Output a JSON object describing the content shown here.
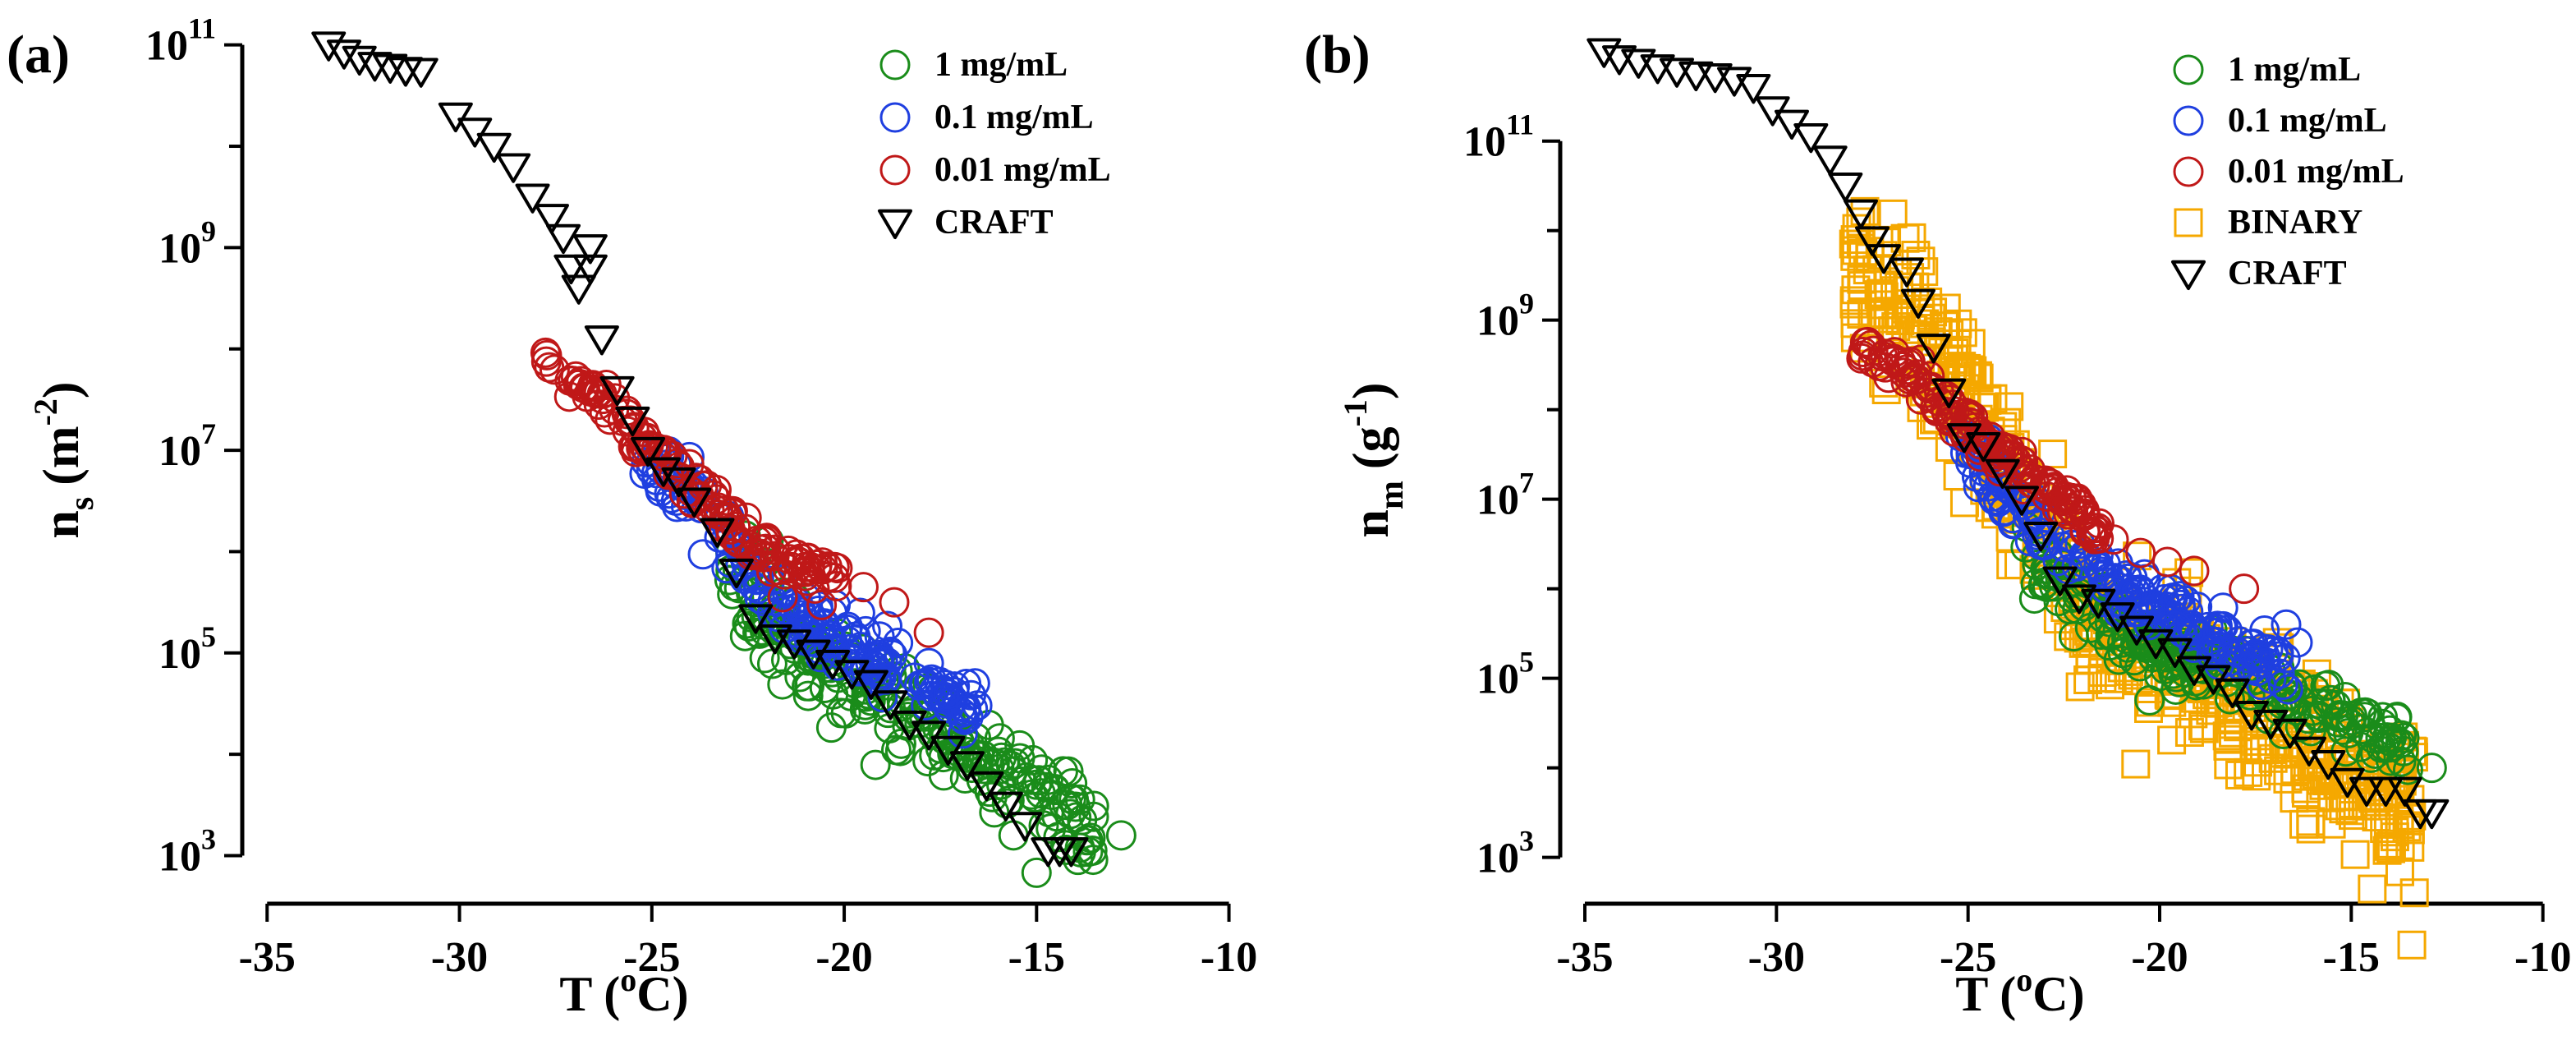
{
  "chart_data": [
    {
      "panel_label": "(a)",
      "type": "scatter",
      "xlabel_main": "T (",
      "xlabel_sup": "o",
      "xlabel_end": "C)",
      "ylabel_base": "n",
      "ylabel_sub": "s",
      "ylabel_units_open": "(m",
      "ylabel_units_sup": "-2",
      "ylabel_units_close": ")",
      "xlim": [
        -36.5,
        -9.5
      ],
      "ylim_log10": [
        2.85,
        11.2
      ],
      "x_ticks": [
        -35,
        -30,
        -25,
        -20,
        -15,
        -10
      ],
      "x_tick_labels": [
        "-35",
        "-30",
        "-25",
        "-20",
        "-15",
        "-10"
      ],
      "y_major_ticks_log10": [
        3,
        5,
        7,
        9,
        11
      ],
      "y_minor_ticks_log10": [
        4,
        6,
        8,
        10
      ],
      "y_tick_base": "10",
      "y_tick_exponents": [
        "3",
        "5",
        "7",
        "9",
        "11"
      ],
      "legend": [
        {
          "label": "1     mg/mL",
          "series": "1 mg/mL"
        },
        {
          "label": "0.1  mg/mL",
          "series": "0.1 mg/mL"
        },
        {
          "label": "0.01 mg/mL",
          "series": "0.01 mg/mL"
        },
        {
          "label": "CRAFT",
          "series": "CRAFT"
        }
      ],
      "series": [
        {
          "name": "1 mg/mL",
          "marker": "circle",
          "color": "#1a8c1a",
          "trend": [
            [
              -23,
              5.8
            ],
            [
              -21,
              5.0
            ],
            [
              -19,
              4.6
            ],
            [
              -17,
              4.1
            ],
            [
              -15,
              3.6
            ],
            [
              -13.5,
              3.3
            ]
          ],
          "count": 220,
          "spread": 0.22,
          "extra": [
            [
              -12.8,
              3.2
            ],
            [
              -15.6,
              3.2
            ],
            [
              -14.2,
              3.5
            ],
            [
              -14.6,
              3.6
            ],
            [
              -15.0,
              3.7
            ]
          ]
        },
        {
          "name": "0.1 mg/mL",
          "marker": "circle",
          "color": "#1f3fe0",
          "trend": [
            [
              -25.2,
              6.8
            ],
            [
              -24,
              6.6
            ],
            [
              -23,
              6.1
            ],
            [
              -22,
              5.6
            ],
            [
              -21,
              5.3
            ],
            [
              -19.5,
              5.0
            ],
            [
              -17.5,
              4.6
            ],
            [
              -16.5,
              4.3
            ]
          ],
          "count": 180,
          "spread": 0.14,
          "extra": [
            [
              -16.6,
              4.7
            ],
            [
              -17.8,
              4.9
            ],
            [
              -18.6,
              5.1
            ]
          ]
        },
        {
          "name": "0.01 mg/mL",
          "marker": "circle",
          "color": "#c01818",
          "trend": [
            [
              -27.8,
              7.85
            ],
            [
              -26.5,
              7.6
            ],
            [
              -25.5,
              7.2
            ],
            [
              -24.5,
              6.8
            ],
            [
              -23.5,
              6.5
            ],
            [
              -22.5,
              6.1
            ],
            [
              -21.5,
              5.9
            ],
            [
              -20,
              5.7
            ]
          ],
          "count": 140,
          "spread": 0.1,
          "extra": [
            [
              -17.8,
              5.2
            ],
            [
              -18.7,
              5.5
            ],
            [
              -19.5,
              5.65
            ],
            [
              -20.4,
              5.75
            ],
            [
              -21.0,
              5.8
            ],
            [
              -22.0,
              5.95
            ],
            [
              -21.6,
              5.55
            ]
          ]
        },
        {
          "name": "CRAFT",
          "marker": "triangle-down",
          "color": "#000000",
          "points": [
            [
              -33.4,
              11.0
            ],
            [
              -33.0,
              10.92
            ],
            [
              -32.6,
              10.86
            ],
            [
              -32.2,
              10.8
            ],
            [
              -31.8,
              10.78
            ],
            [
              -31.4,
              10.75
            ],
            [
              -31.0,
              10.74
            ],
            [
              -30.1,
              10.3
            ],
            [
              -29.6,
              10.15
            ],
            [
              -29.1,
              10.0
            ],
            [
              -28.6,
              9.8
            ],
            [
              -28.1,
              9.5
            ],
            [
              -27.6,
              9.3
            ],
            [
              -27.3,
              9.1
            ],
            [
              -27.1,
              8.8
            ],
            [
              -26.6,
              9.0
            ],
            [
              -26.9,
              8.6
            ],
            [
              -26.6,
              8.8
            ],
            [
              -26.3,
              8.1
            ],
            [
              -25.9,
              7.6
            ],
            [
              -25.5,
              7.3
            ],
            [
              -25.1,
              7.0
            ],
            [
              -24.7,
              6.8
            ],
            [
              -24.3,
              6.7
            ],
            [
              -23.9,
              6.5
            ],
            [
              -23.3,
              6.2
            ],
            [
              -22.8,
              5.8
            ],
            [
              -22.3,
              5.35
            ],
            [
              -21.8,
              5.15
            ],
            [
              -21.3,
              5.1
            ],
            [
              -20.8,
              5.0
            ],
            [
              -20.3,
              4.9
            ],
            [
              -19.8,
              4.8
            ],
            [
              -19.3,
              4.7
            ],
            [
              -18.8,
              4.5
            ],
            [
              -18.3,
              4.3
            ],
            [
              -17.8,
              4.2
            ],
            [
              -17.3,
              4.05
            ],
            [
              -16.8,
              3.9
            ],
            [
              -16.3,
              3.7
            ],
            [
              -15.8,
              3.5
            ],
            [
              -15.3,
              3.3
            ],
            [
              -14.7,
              3.05
            ],
            [
              -14.4,
              3.05
            ],
            [
              -14.1,
              3.05
            ]
          ]
        }
      ]
    },
    {
      "panel_label": "(b)",
      "type": "scatter",
      "xlabel_main": "T (",
      "xlabel_sup": "o",
      "xlabel_end": "C)",
      "ylabel_base": "n",
      "ylabel_sub": "m",
      "ylabel_units_open": "(g",
      "ylabel_units_sup": "-1",
      "ylabel_units_close": ")",
      "xlim": [
        -36.5,
        -9.5
      ],
      "ylim_log10": [
        2.85,
        12.3
      ],
      "x_ticks": [
        -35,
        -30,
        -25,
        -20,
        -15,
        -10
      ],
      "x_tick_labels": [
        "-35",
        "-30",
        "-25",
        "-20",
        "-15",
        "-10"
      ],
      "y_major_ticks_log10": [
        3,
        5,
        7,
        9,
        11
      ],
      "y_minor_ticks_log10": [
        4,
        6,
        8,
        10
      ],
      "y_tick_base": "10",
      "y_tick_exponents": [
        "3",
        "5",
        "7",
        "9",
        "11"
      ],
      "legend": [
        {
          "label": "1     mg/mL",
          "series": "1 mg/mL"
        },
        {
          "label": "0.1  mg/mL",
          "series": "0.1 mg/mL"
        },
        {
          "label": "0.01 mg/mL",
          "series": "0.01 mg/mL"
        },
        {
          "label": "BINARY",
          "series": "BINARY"
        },
        {
          "label": "CRAFT",
          "series": "CRAFT"
        }
      ],
      "series": [
        {
          "name": "BINARY",
          "marker": "square",
          "color": "#f5a800",
          "trend": [
            [
              -28,
              9.4
            ],
            [
              -26.5,
              9.0
            ],
            [
              -25,
              8.1
            ],
            [
              -24,
              7.3
            ],
            [
              -23,
              6.5
            ],
            [
              -22,
              6.0
            ],
            [
              -20,
              5.3
            ],
            [
              -18,
              4.8
            ],
            [
              -16,
              4.2
            ],
            [
              -14,
              3.7
            ],
            [
              -13.3,
              3.6
            ]
          ],
          "count": 520,
          "spread": 0.45,
          "extra": []
        },
        {
          "name": "1 mg/mL",
          "marker": "circle",
          "color": "#1a8c1a",
          "trend": [
            [
              -23.5,
              6.3
            ],
            [
              -22,
              5.8
            ],
            [
              -20,
              5.3
            ],
            [
              -18,
              5.1
            ],
            [
              -16,
              4.7
            ],
            [
              -14.5,
              4.4
            ],
            [
              -13.5,
              4.2
            ]
          ],
          "count": 200,
          "spread": 0.18,
          "extra": [
            [
              -12.9,
              4.0
            ],
            [
              -14.0,
              4.3
            ],
            [
              -15.4,
              4.7
            ]
          ]
        },
        {
          "name": "0.1 mg/mL",
          "marker": "circle",
          "color": "#1f3fe0",
          "trend": [
            [
              -25.2,
              7.7
            ],
            [
              -24,
              7.0
            ],
            [
              -23,
              6.6
            ],
            [
              -22,
              6.3
            ],
            [
              -21,
              6.0
            ],
            [
              -19.5,
              5.7
            ],
            [
              -18,
              5.4
            ],
            [
              -16.6,
              5.1
            ]
          ],
          "count": 190,
          "spread": 0.14,
          "extra": [
            [
              -16.7,
              5.6
            ],
            [
              -16.4,
              5.4
            ]
          ]
        },
        {
          "name": "0.01 mg/mL",
          "marker": "circle",
          "color": "#c01818",
          "trend": [
            [
              -27.8,
              8.7
            ],
            [
              -26.5,
              8.4
            ],
            [
              -25.5,
              8.0
            ],
            [
              -24.5,
              7.6
            ],
            [
              -23.5,
              7.3
            ],
            [
              -22.5,
              7.0
            ],
            [
              -21.5,
              6.6
            ]
          ],
          "count": 140,
          "spread": 0.1,
          "extra": [
            [
              -17.8,
              6.0
            ],
            [
              -19.1,
              6.2
            ],
            [
              -19.8,
              6.3
            ],
            [
              -20.5,
              6.4
            ],
            [
              -21.2,
              6.55
            ]
          ]
        },
        {
          "name": "CRAFT",
          "marker": "triangle-down",
          "color": "#000000",
          "points": [
            [
              -34.5,
              12.0
            ],
            [
              -34.1,
              11.92
            ],
            [
              -33.6,
              11.88
            ],
            [
              -33.1,
              11.82
            ],
            [
              -32.6,
              11.78
            ],
            [
              -32.1,
              11.74
            ],
            [
              -31.6,
              11.72
            ],
            [
              -31.1,
              11.68
            ],
            [
              -30.6,
              11.6
            ],
            [
              -30.1,
              11.35
            ],
            [
              -29.6,
              11.2
            ],
            [
              -29.1,
              11.05
            ],
            [
              -28.6,
              10.8
            ],
            [
              -28.2,
              10.5
            ],
            [
              -27.8,
              10.2
            ],
            [
              -27.5,
              9.9
            ],
            [
              -27.2,
              9.7
            ],
            [
              -26.6,
              9.55
            ],
            [
              -26.3,
              9.2
            ],
            [
              -25.9,
              8.7
            ],
            [
              -25.5,
              8.2
            ],
            [
              -25.1,
              7.7
            ],
            [
              -24.6,
              7.6
            ],
            [
              -24.1,
              7.3
            ],
            [
              -23.6,
              7.0
            ],
            [
              -23.1,
              6.6
            ],
            [
              -22.6,
              6.1
            ],
            [
              -22.1,
              5.9
            ],
            [
              -21.6,
              5.85
            ],
            [
              -21.1,
              5.7
            ],
            [
              -20.6,
              5.55
            ],
            [
              -20.1,
              5.4
            ],
            [
              -19.6,
              5.3
            ],
            [
              -19.1,
              5.1
            ],
            [
              -18.6,
              5.0
            ],
            [
              -18.1,
              4.85
            ],
            [
              -17.6,
              4.6
            ],
            [
              -17.1,
              4.5
            ],
            [
              -16.6,
              4.4
            ],
            [
              -16.1,
              4.2
            ],
            [
              -15.6,
              4.05
            ],
            [
              -15.1,
              3.85
            ],
            [
              -14.6,
              3.75
            ],
            [
              -14.1,
              3.75
            ],
            [
              -13.6,
              3.75
            ],
            [
              -13.2,
              3.5
            ],
            [
              -12.9,
              3.5
            ]
          ]
        }
      ]
    }
  ]
}
